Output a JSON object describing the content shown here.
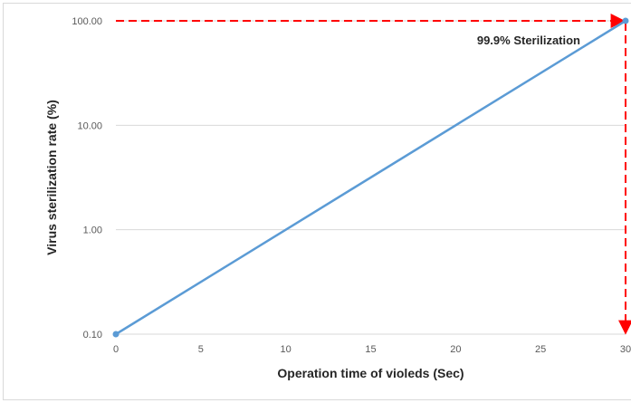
{
  "chart_data": {
    "type": "line",
    "title": "",
    "xlabel": "Operation time of violeds (Sec)",
    "ylabel": "Virus sterilization rate (%)",
    "y_scale": "log",
    "xlim": [
      0,
      30
    ],
    "ylim": [
      0.1,
      100
    ],
    "x_ticks": [
      "0",
      "5",
      "10",
      "15",
      "20",
      "25",
      "30"
    ],
    "y_ticks": [
      "0.10",
      "1.00",
      "10.00",
      "100.00"
    ],
    "grid": true,
    "legend": "none",
    "series": [
      {
        "x": [
          0,
          30
        ],
        "y": [
          0.1,
          100
        ],
        "color": "#5b9bd5"
      }
    ],
    "annotations": [
      {
        "text": "99.9% Sterilization",
        "x": 30,
        "y": 100
      }
    ],
    "reference_line_color": "#ff0000"
  }
}
